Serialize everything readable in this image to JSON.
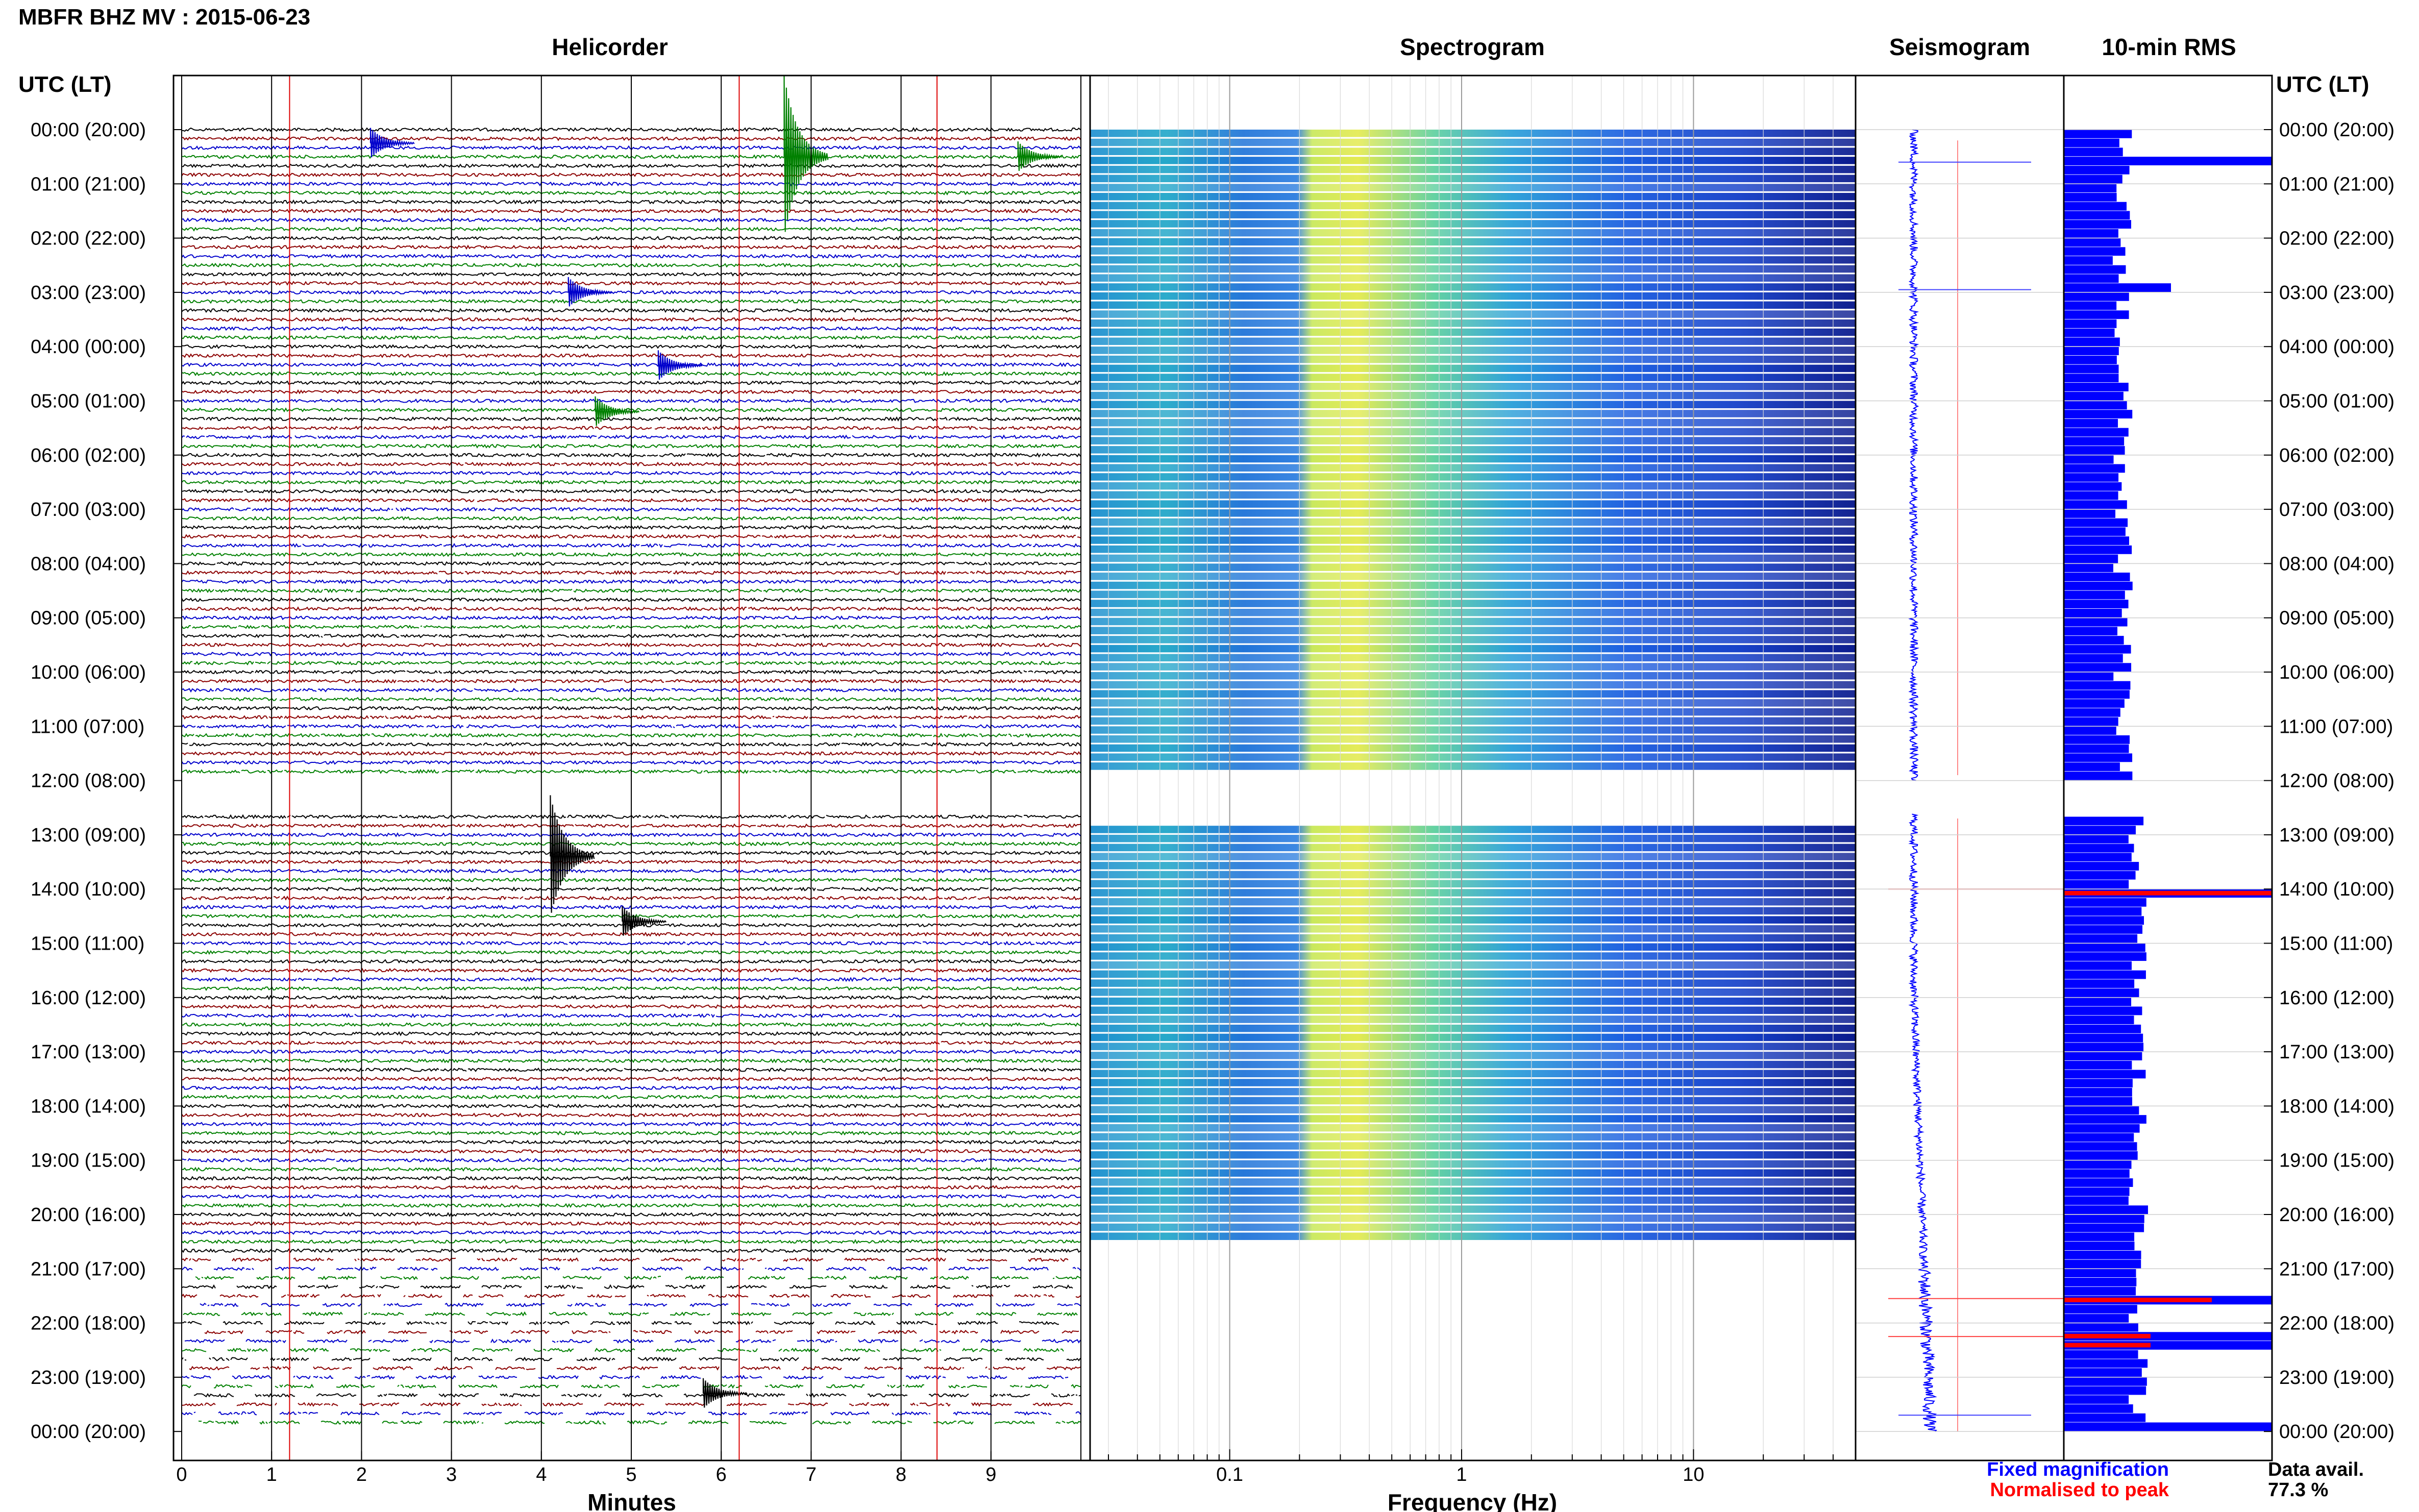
{
  "header": {
    "title": "MBFR BHZ MV : 2015-06-23"
  },
  "panels": {
    "helicorder": "Helicorder",
    "spectrogram": "Spectrogram",
    "seismogram": "Seismogram",
    "rms": "10-min RMS"
  },
  "axes": {
    "utc_label_left": "UTC (LT)",
    "utc_label_right": "UTC (LT)",
    "minutes_label": "Minutes",
    "frequency_label": "Frequency (Hz)"
  },
  "legend": {
    "fixed": "Fixed magnification",
    "normalised": "Normalised to peak",
    "data_avail_label": "Data avail.",
    "data_avail_value": "77.3 %"
  },
  "colors": {
    "trace_cycle": [
      "#000000",
      "#8b0000",
      "#0000cc",
      "#008000"
    ],
    "rms_fixed": "#0000ff",
    "rms_normalised": "#ff0000",
    "spectrogram_low": "#0a1a8c",
    "spectrogram_mid": "#2fb8c8",
    "spectrogram_high": "#e8e84a"
  },
  "chart_data": [
    {
      "type": "line",
      "name": "helicorder",
      "title": "Helicorder",
      "xlabel": "Minutes",
      "xlim": [
        0,
        10
      ],
      "x_ticks": [
        "0",
        "1",
        "2",
        "3",
        "4",
        "5",
        "6",
        "7",
        "8",
        "9"
      ],
      "y_ticks": [
        "00:00 (20:00)",
        "01:00 (21:00)",
        "02:00 (22:00)",
        "03:00 (23:00)",
        "04:00 (00:00)",
        "05:00 (01:00)",
        "06:00 (02:00)",
        "07:00 (03:00)",
        "08:00 (04:00)",
        "09:00 (05:00)",
        "10:00 (06:00)",
        "11:00 (07:00)",
        "12:00 (08:00)",
        "13:00 (09:00)",
        "14:00 (10:00)",
        "15:00 (11:00)",
        "16:00 (12:00)",
        "17:00 (13:00)",
        "18:00 (14:00)",
        "19:00 (15:00)",
        "20:00 (16:00)",
        "21:00 (17:00)",
        "22:00 (18:00)",
        "23:00 (19:00)",
        "00:00 (20:00)"
      ],
      "rows_per_hour": 6,
      "data_gap_hours": [
        [
          12.0,
          12.6
        ]
      ],
      "events": [
        {
          "hour": 0.25,
          "minute": 2.1
        },
        {
          "hour": 0.5,
          "minute": 6.7
        },
        {
          "hour": 0.5,
          "minute": 9.3
        },
        {
          "hour": 3.0,
          "minute": 4.3
        },
        {
          "hour": 4.35,
          "minute": 5.3
        },
        {
          "hour": 5.2,
          "minute": 4.6
        },
        {
          "hour": 13.4,
          "minute": 4.1
        },
        {
          "hour": 14.6,
          "minute": 4.9
        },
        {
          "hour": 23.3,
          "minute": 5.8
        }
      ]
    },
    {
      "type": "heatmap",
      "name": "spectrogram",
      "title": "Spectrogram",
      "xlabel": "Frequency (Hz)",
      "x_scale": "log",
      "xlim": [
        0.025,
        50
      ],
      "x_ticks": [
        "0.1",
        "1",
        "10"
      ],
      "data_gap_hours": [
        [
          11.8,
          12.7
        ],
        [
          20.5,
          24.0
        ]
      ]
    },
    {
      "type": "line",
      "name": "seismogram",
      "title": "Seismogram",
      "series": [
        {
          "name": "Fixed magnification",
          "color": "#0000ff"
        },
        {
          "name": "Normalised to peak",
          "color": "#ff0000"
        }
      ],
      "data_gap_hours": [
        [
          12.0,
          12.6
        ]
      ]
    },
    {
      "type": "bar",
      "name": "rms",
      "title": "10-min RMS",
      "orientation": "horizontal",
      "bins_per_hour": 6,
      "normalised_peak_hours": [
        14.0,
        21.55,
        22.25
      ],
      "fixed_peak_hours": [
        0.55,
        2.9,
        13.95,
        21.55,
        22.25,
        23.85
      ],
      "data_gap_hours": [
        [
          12.0,
          12.6
        ]
      ]
    }
  ]
}
